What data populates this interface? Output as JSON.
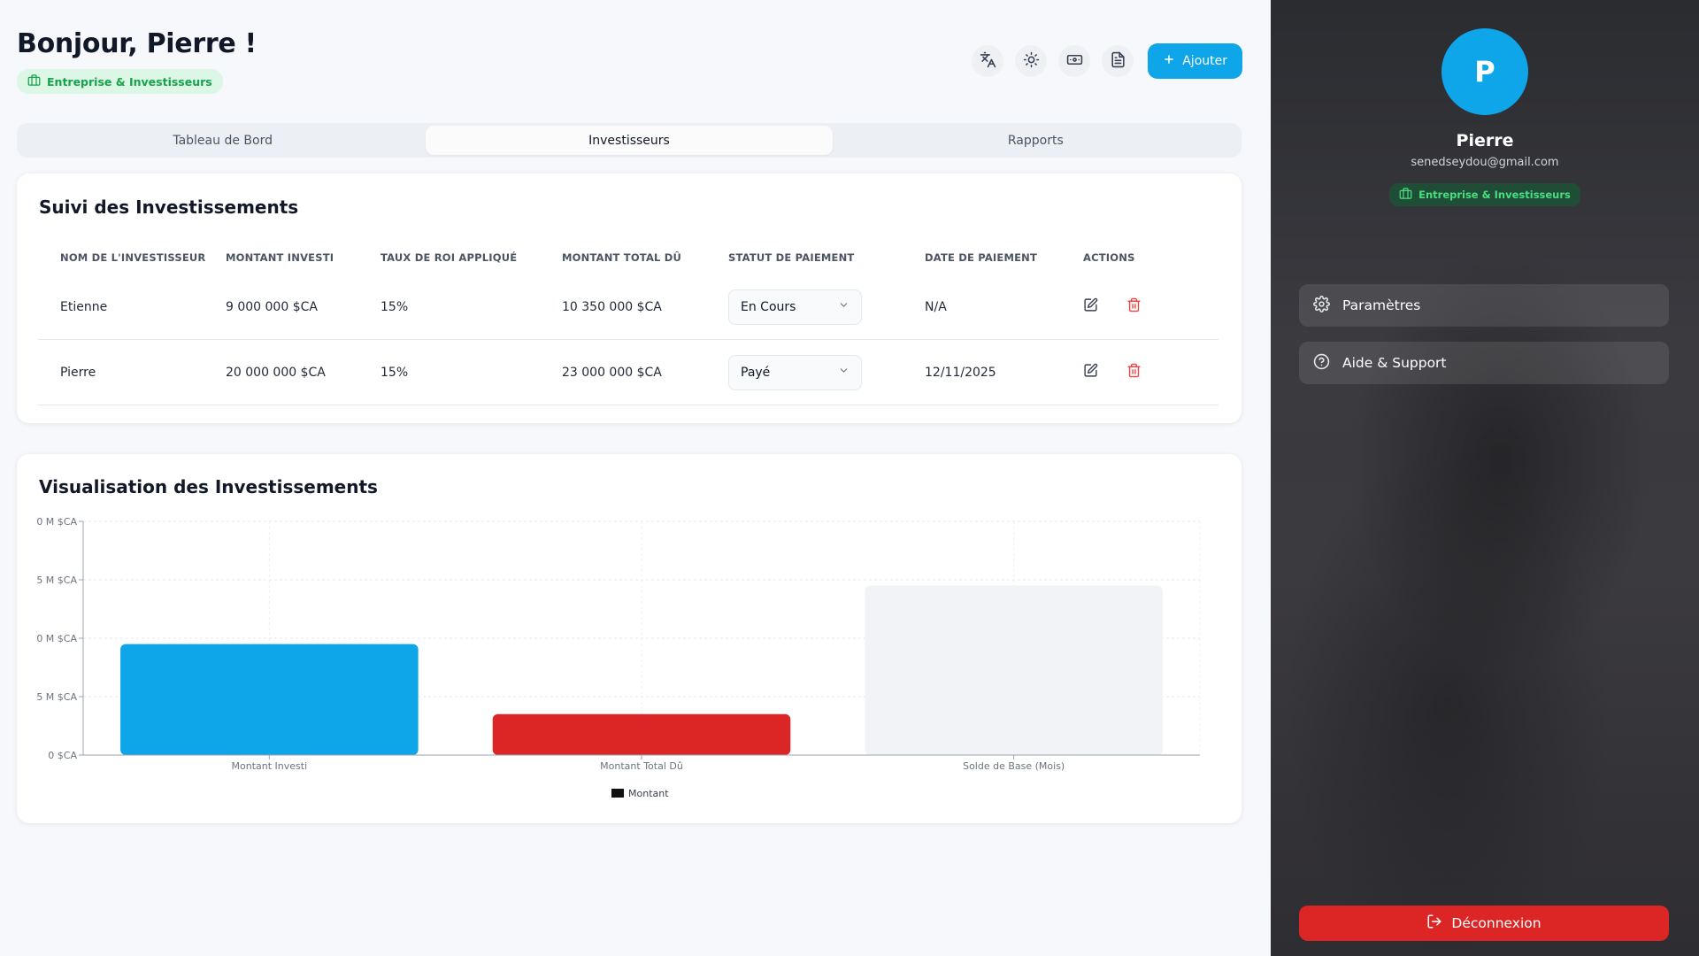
{
  "header": {
    "greeting": "Bonjour, Pierre !",
    "badge": "Entreprise & Investisseurs",
    "add_label": "Ajouter",
    "icons": [
      "translate-icon",
      "sun-icon",
      "cash-icon",
      "document-icon"
    ]
  },
  "tabs": [
    {
      "label": "Tableau de Bord",
      "active": false
    },
    {
      "label": "Investisseurs",
      "active": true
    },
    {
      "label": "Rapports",
      "active": false
    }
  ],
  "investments": {
    "title": "Suivi des Investissements",
    "columns": [
      "NOM DE L'INVESTISSEUR",
      "MONTANT INVESTI",
      "TAUX DE ROI APPLIQUÉ",
      "MONTANT TOTAL DÛ",
      "STATUT DE PAIEMENT",
      "DATE DE PAIEMENT",
      "ACTIONS"
    ],
    "rows": [
      {
        "name": "Etienne",
        "invested": "9 000 000 $CA",
        "roi": "15%",
        "total_due": "10 350 000 $CA",
        "status": "En Cours",
        "date": "N/A"
      },
      {
        "name": "Pierre",
        "invested": "20 000 000 $CA",
        "roi": "15%",
        "total_due": "23 000 000 $CA",
        "status": "Payé",
        "date": "12/11/2025"
      }
    ]
  },
  "chart": {
    "title": "Visualisation des Investissements"
  },
  "chart_data": {
    "type": "bar",
    "categories": [
      "Montant Investi",
      "Montant Total Dû",
      "Solde de Base (Mois)"
    ],
    "series": [
      {
        "name": "Montant",
        "values": [
          19,
          7,
          29
        ]
      }
    ],
    "bar_colors": [
      "#0ea5e9",
      "#dc2626",
      "#f1f3f6"
    ],
    "y_ticks": [
      "0 $CA",
      "5 M $CA",
      "0 M $CA",
      "5 M $CA",
      "0 M $CA"
    ],
    "ylim": [
      0,
      40
    ],
    "grid": true,
    "legend_position": "bottom"
  },
  "sidebar": {
    "avatar_letter": "P",
    "name": "Pierre",
    "email": "senedseydou@gmail.com",
    "badge": "Entreprise & Investisseurs",
    "menu": [
      {
        "label": "Paramètres",
        "icon": "gear-icon"
      },
      {
        "label": "Aide & Support",
        "icon": "help-circle-icon"
      }
    ],
    "logout_label": "Déconnexion"
  },
  "colors": {
    "accent": "#0ea5e9",
    "danger": "#dc2626",
    "badge_text": "#16a34a"
  }
}
